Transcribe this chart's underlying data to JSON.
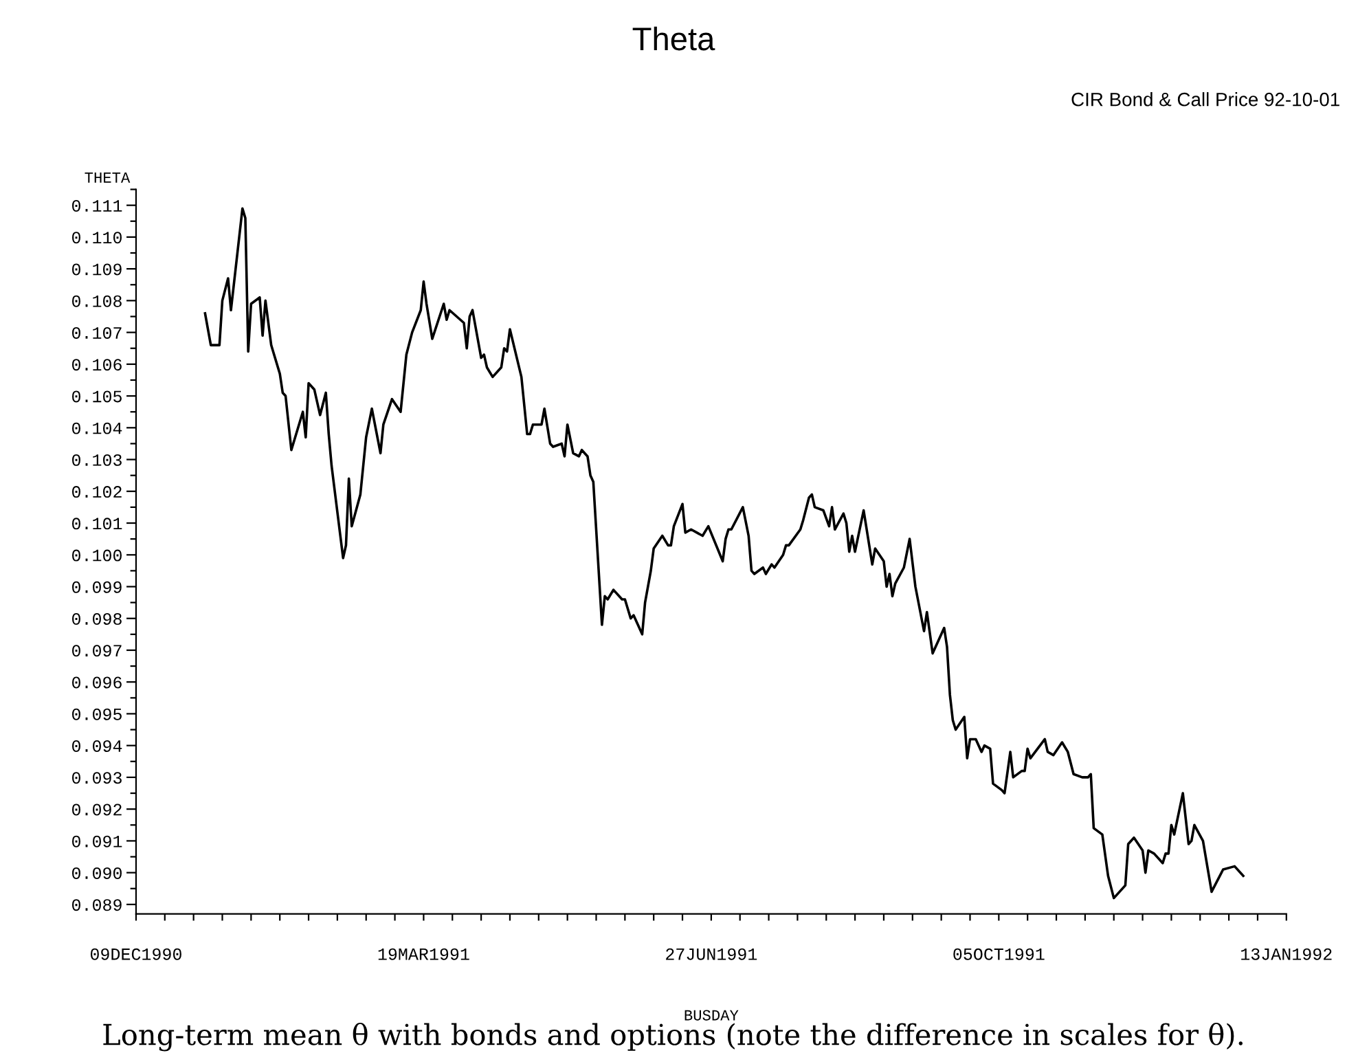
{
  "chart_data": {
    "type": "line",
    "title": "Theta",
    "ylabel": "THETA",
    "xlabel": "BUSDAY",
    "annotations": [
      "CIR Bond & Call Price 92-10-01",
      "Long-term mean θ with bonds and options (note the difference in scales for θ)."
    ],
    "x": [
      "1991-01-02",
      "1991-01-04",
      "1991-01-07",
      "1991-01-08",
      "1991-01-10",
      "1991-01-11",
      "1991-01-15",
      "1991-01-16",
      "1991-01-17",
      "1991-01-18",
      "1991-01-21",
      "1991-01-22",
      "1991-01-23",
      "1991-01-25",
      "1991-01-28",
      "1991-01-29",
      "1991-01-30",
      "1991-02-01",
      "1991-02-05",
      "1991-02-06",
      "1991-02-07",
      "1991-02-09",
      "1991-02-11",
      "1991-02-13",
      "1991-02-14",
      "1991-02-15",
      "1991-02-19",
      "1991-02-20",
      "1991-02-21",
      "1991-02-22",
      "1991-02-25",
      "1991-02-27",
      "1991-03-01",
      "1991-03-04",
      "1991-03-05",
      "1991-03-08",
      "1991-03-11",
      "1991-03-13",
      "1991-03-15",
      "1991-03-18",
      "1991-03-19",
      "1991-03-20",
      "1991-03-22",
      "1991-03-26",
      "1991-03-27",
      "1991-03-28",
      "1991-04-02",
      "1991-04-03",
      "1991-04-04",
      "1991-04-05",
      "1991-04-08",
      "1991-04-09",
      "1991-04-10",
      "1991-04-12",
      "1991-04-15",
      "1991-04-16",
      "1991-04-17",
      "1991-04-18",
      "1991-04-22",
      "1991-04-24",
      "1991-04-25",
      "1991-04-26",
      "1991-04-29",
      "1991-04-30",
      "1991-05-02",
      "1991-05-03",
      "1991-05-06",
      "1991-05-07",
      "1991-05-08",
      "1991-05-10",
      "1991-05-12",
      "1991-05-13",
      "1991-05-15",
      "1991-05-16",
      "1991-05-17",
      "1991-05-20",
      "1991-05-21",
      "1991-05-22",
      "1991-05-24",
      "1991-05-27",
      "1991-05-28",
      "1991-05-30",
      "1991-05-31",
      "1991-06-03",
      "1991-06-04",
      "1991-06-06",
      "1991-06-07",
      "1991-06-10",
      "1991-06-12",
      "1991-06-13",
      "1991-06-14",
      "1991-06-17",
      "1991-06-18",
      "1991-06-20",
      "1991-06-22",
      "1991-06-24",
      "1991-06-26",
      "1991-07-01",
      "1991-07-02",
      "1991-07-03",
      "1991-07-04",
      "1991-07-08",
      "1991-07-10",
      "1991-07-11",
      "1991-07-12",
      "1991-07-15",
      "1991-07-16",
      "1991-07-18",
      "1991-07-19",
      "1991-07-22",
      "1991-07-23",
      "1991-07-24",
      "1991-07-28",
      "1991-07-29",
      "1991-07-31",
      "1991-08-01",
      "1991-08-02",
      "1991-08-05",
      "1991-08-07",
      "1991-08-08",
      "1991-08-09",
      "1991-08-12",
      "1991-08-13",
      "1991-08-14",
      "1991-08-15",
      "1991-08-16",
      "1991-08-19",
      "1991-08-22",
      "1991-08-23",
      "1991-08-26",
      "1991-08-27",
      "1991-08-28",
      "1991-08-29",
      "1991-08-30",
      "1991-09-02",
      "1991-09-04",
      "1991-09-06",
      "1991-09-09",
      "1991-09-10",
      "1991-09-12",
      "1991-09-16",
      "1991-09-17",
      "1991-09-18",
      "1991-09-19",
      "1991-09-20",
      "1991-09-23",
      "1991-09-24",
      "1991-09-25",
      "1991-09-27",
      "1991-09-29",
      "1991-09-30",
      "1991-10-02",
      "1991-10-03",
      "1991-10-06",
      "1991-10-07",
      "1991-10-09",
      "1991-10-10",
      "1991-10-13",
      "1991-10-14",
      "1991-10-15",
      "1991-10-16",
      "1991-10-21",
      "1991-10-22",
      "1991-10-24",
      "1991-10-27",
      "1991-10-29",
      "1991-10-31",
      "1991-11-03",
      "1991-11-05",
      "1991-11-06",
      "1991-11-07",
      "1991-11-10",
      "1991-11-12",
      "1991-11-14",
      "1991-11-18",
      "1991-11-19",
      "1991-11-21",
      "1991-11-24",
      "1991-11-25",
      "1991-11-26",
      "1991-11-28",
      "1991-12-01",
      "1991-12-02",
      "1991-12-03",
      "1991-12-04",
      "1991-12-05",
      "1991-12-08",
      "1991-12-10",
      "1991-12-11",
      "1991-12-12",
      "1991-12-15",
      "1991-12-18",
      "1991-12-22",
      "1991-12-26",
      "1991-12-29"
    ],
    "series": [
      {
        "color": "#000000",
        "values": [
          0.1076,
          0.1066,
          0.1066,
          0.108,
          0.1087,
          0.1077,
          0.1109,
          0.1106,
          0.1064,
          0.1079,
          0.1081,
          0.1069,
          0.108,
          0.1066,
          0.1057,
          0.1051,
          0.105,
          0.1033,
          0.1045,
          0.1037,
          0.1054,
          0.1052,
          0.1044,
          0.1051,
          0.1038,
          0.1028,
          0.0999,
          0.1003,
          0.1024,
          0.1009,
          0.1019,
          0.1037,
          0.1046,
          0.1032,
          0.1041,
          0.1049,
          0.1045,
          0.1063,
          0.107,
          0.1077,
          0.1086,
          0.1079,
          0.1068,
          0.1079,
          0.1074,
          0.1077,
          0.1073,
          0.1065,
          0.1075,
          0.1077,
          0.1062,
          0.1063,
          0.1059,
          0.1056,
          0.1059,
          0.1065,
          0.1064,
          0.1071,
          0.1056,
          0.1038,
          0.1038,
          0.1041,
          0.1041,
          0.1046,
          0.1035,
          0.1034,
          0.1035,
          0.1031,
          0.1041,
          0.1032,
          0.1031,
          0.1033,
          0.1031,
          0.1025,
          0.1023,
          0.0978,
          0.0987,
          0.0986,
          0.0989,
          0.0986,
          0.0986,
          0.098,
          0.0981,
          0.0975,
          0.0985,
          0.0995,
          0.1002,
          0.1006,
          0.1003,
          0.1003,
          0.1009,
          0.1016,
          0.1007,
          0.1008,
          0.1007,
          0.1006,
          0.1009,
          0.0998,
          0.1005,
          0.1008,
          0.1008,
          0.1015,
          0.1006,
          0.0995,
          0.0994,
          0.0996,
          0.0994,
          0.0997,
          0.0996,
          0.1,
          0.1003,
          0.1003,
          0.1008,
          0.1011,
          0.1018,
          0.1019,
          0.1015,
          0.1014,
          0.1009,
          0.1015,
          0.1008,
          0.1013,
          0.101,
          0.1001,
          0.1006,
          0.1001,
          0.1014,
          0.0997,
          0.1002,
          0.0998,
          0.099,
          0.0994,
          0.0987,
          0.0991,
          0.0996,
          0.1005,
          0.099,
          0.0976,
          0.0982,
          0.0969,
          0.0977,
          0.0971,
          0.0956,
          0.0948,
          0.0945,
          0.0949,
          0.0936,
          0.0942,
          0.0942,
          0.0938,
          0.094,
          0.0939,
          0.0928,
          0.0926,
          0.0925,
          0.0938,
          0.093,
          0.0932,
          0.0932,
          0.0939,
          0.0936,
          0.0942,
          0.0938,
          0.0937,
          0.0941,
          0.0938,
          0.0931,
          0.093,
          0.093,
          0.0931,
          0.0914,
          0.0912,
          0.0899,
          0.0892,
          0.0896,
          0.0909,
          0.0911,
          0.0907,
          0.09,
          0.0907,
          0.0906,
          0.0903,
          0.0906,
          0.0906,
          0.0915,
          0.0912,
          0.0925,
          0.0909,
          0.091,
          0.0915,
          0.091,
          0.0894,
          0.0901,
          0.0902,
          0.0899
        ]
      }
    ],
    "xlim": [
      "1990-12-09",
      "1992-01-13"
    ],
    "xticks": [
      {
        "value": "1990-12-09",
        "label": "09DEC1990"
      },
      {
        "value": "1990-12-19",
        "label": null
      },
      {
        "value": "1990-12-29",
        "label": null
      },
      {
        "value": "1991-01-08",
        "label": null
      },
      {
        "value": "1991-01-18",
        "label": null
      },
      {
        "value": "1991-01-28",
        "label": null
      },
      {
        "value": "1991-02-07",
        "label": null
      },
      {
        "value": "1991-02-17",
        "label": null
      },
      {
        "value": "1991-02-27",
        "label": null
      },
      {
        "value": "1991-03-09",
        "label": null
      },
      {
        "value": "1991-03-19",
        "label": "19MAR1991"
      },
      {
        "value": "1991-03-29",
        "label": null
      },
      {
        "value": "1991-04-08",
        "label": null
      },
      {
        "value": "1991-04-18",
        "label": null
      },
      {
        "value": "1991-04-28",
        "label": null
      },
      {
        "value": "1991-05-08",
        "label": null
      },
      {
        "value": "1991-05-18",
        "label": null
      },
      {
        "value": "1991-05-28",
        "label": null
      },
      {
        "value": "1991-06-07",
        "label": null
      },
      {
        "value": "1991-06-17",
        "label": null
      },
      {
        "value": "1991-06-27",
        "label": "27JUN1991"
      },
      {
        "value": "1991-07-07",
        "label": null
      },
      {
        "value": "1991-07-17",
        "label": null
      },
      {
        "value": "1991-07-27",
        "label": null
      },
      {
        "value": "1991-08-06",
        "label": null
      },
      {
        "value": "1991-08-16",
        "label": null
      },
      {
        "value": "1991-08-26",
        "label": null
      },
      {
        "value": "1991-09-05",
        "label": null
      },
      {
        "value": "1991-09-15",
        "label": null
      },
      {
        "value": "1991-09-25",
        "label": null
      },
      {
        "value": "1991-10-05",
        "label": "05OCT1991"
      },
      {
        "value": "1991-10-15",
        "label": null
      },
      {
        "value": "1991-10-25",
        "label": null
      },
      {
        "value": "1991-11-04",
        "label": null
      },
      {
        "value": "1991-11-14",
        "label": null
      },
      {
        "value": "1991-11-24",
        "label": null
      },
      {
        "value": "1991-12-04",
        "label": null
      },
      {
        "value": "1991-12-14",
        "label": null
      },
      {
        "value": "1991-12-24",
        "label": null
      },
      {
        "value": "1992-01-03",
        "label": null
      },
      {
        "value": "1992-01-13",
        "label": "13JAN1992"
      }
    ],
    "ylim": [
      0.0887,
      0.1115
    ],
    "yticks": [
      {
        "value": 0.089,
        "label": "0.089"
      },
      {
        "value": 0.0895,
        "label": null
      },
      {
        "value": 0.09,
        "label": "0.090"
      },
      {
        "value": 0.0905,
        "label": null
      },
      {
        "value": 0.091,
        "label": "0.091"
      },
      {
        "value": 0.0915,
        "label": null
      },
      {
        "value": 0.092,
        "label": "0.092"
      },
      {
        "value": 0.0925,
        "label": null
      },
      {
        "value": 0.093,
        "label": "0.093"
      },
      {
        "value": 0.0935,
        "label": null
      },
      {
        "value": 0.094,
        "label": "0.094"
      },
      {
        "value": 0.0945,
        "label": null
      },
      {
        "value": 0.095,
        "label": "0.095"
      },
      {
        "value": 0.0955,
        "label": null
      },
      {
        "value": 0.096,
        "label": "0.096"
      },
      {
        "value": 0.0965,
        "label": null
      },
      {
        "value": 0.097,
        "label": "0.097"
      },
      {
        "value": 0.0975,
        "label": null
      },
      {
        "value": 0.098,
        "label": "0.098"
      },
      {
        "value": 0.0985,
        "label": null
      },
      {
        "value": 0.099,
        "label": "0.099"
      },
      {
        "value": 0.0995,
        "label": null
      },
      {
        "value": 0.1,
        "label": "0.100"
      },
      {
        "value": 0.1005,
        "label": null
      },
      {
        "value": 0.101,
        "label": "0.101"
      },
      {
        "value": 0.1015,
        "label": null
      },
      {
        "value": 0.102,
        "label": "0.102"
      },
      {
        "value": 0.1025,
        "label": null
      },
      {
        "value": 0.103,
        "label": "0.103"
      },
      {
        "value": 0.1035,
        "label": null
      },
      {
        "value": 0.104,
        "label": "0.104"
      },
      {
        "value": 0.1045,
        "label": null
      },
      {
        "value": 0.105,
        "label": "0.105"
      },
      {
        "value": 0.1055,
        "label": null
      },
      {
        "value": 0.106,
        "label": "0.106"
      },
      {
        "value": 0.1065,
        "label": null
      },
      {
        "value": 0.107,
        "label": "0.107"
      },
      {
        "value": 0.1075,
        "label": null
      },
      {
        "value": 0.108,
        "label": "0.108"
      },
      {
        "value": 0.1085,
        "label": null
      },
      {
        "value": 0.109,
        "label": "0.109"
      },
      {
        "value": 0.1095,
        "label": null
      },
      {
        "value": 0.11,
        "label": "0.110"
      },
      {
        "value": 0.1105,
        "label": null
      },
      {
        "value": 0.111,
        "label": "0.111"
      },
      {
        "value": 0.1115,
        "label": null
      }
    ],
    "grid": false,
    "legend": false,
    "marker": "none",
    "line_style": "solid"
  }
}
